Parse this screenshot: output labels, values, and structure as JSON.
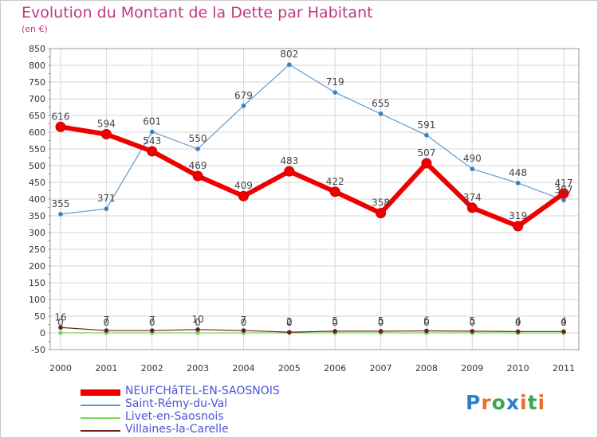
{
  "chart_data": {
    "type": "line",
    "title": "Evolution du Montant de la Dette par Habitant",
    "subtitle": "(en €)",
    "x": [
      "2000",
      "2001",
      "2002",
      "2003",
      "2004",
      "2005",
      "2006",
      "2007",
      "2008",
      "2009",
      "2010",
      "2011"
    ],
    "ylim": [
      -50,
      850
    ],
    "yticks": [
      -50,
      0,
      50,
      100,
      150,
      200,
      250,
      300,
      350,
      400,
      450,
      500,
      550,
      600,
      650,
      700,
      750,
      800,
      850
    ],
    "grid": true,
    "legend_position": "bottom-left",
    "series": [
      {
        "name": "NEUFCHâTEL-EN-SAOSNOIS",
        "color": "#ee0000",
        "values": [
          616,
          594,
          543,
          469,
          409,
          483,
          422,
          358,
          507,
          374,
          319,
          417
        ]
      },
      {
        "name": "Saint-Rémy-du-Val",
        "color": "#5b9bd5",
        "values": [
          355,
          371,
          601,
          550,
          679,
          802,
          719,
          655,
          591,
          490,
          448,
          397
        ]
      },
      {
        "name": "Livet-en-Saosnois",
        "color": "#7fd35b",
        "values": [
          0,
          0,
          0,
          0,
          0,
          0,
          0,
          0,
          0,
          0,
          0,
          0
        ]
      },
      {
        "name": "Villaines-la-Carelle",
        "color": "#6b1f1f",
        "values": [
          16,
          7,
          7,
          10,
          7,
          2,
          5,
          5,
          6,
          5,
          4,
          4
        ]
      }
    ]
  },
  "logo": {
    "letters": [
      "P",
      "r",
      "o",
      "x",
      "i",
      "t",
      "i"
    ],
    "colors": [
      "#2f7fc8",
      "#e8702a",
      "#3aa84a",
      "#2f7fc8",
      "#e8702a",
      "#3aa84a",
      "#e8702a"
    ]
  }
}
